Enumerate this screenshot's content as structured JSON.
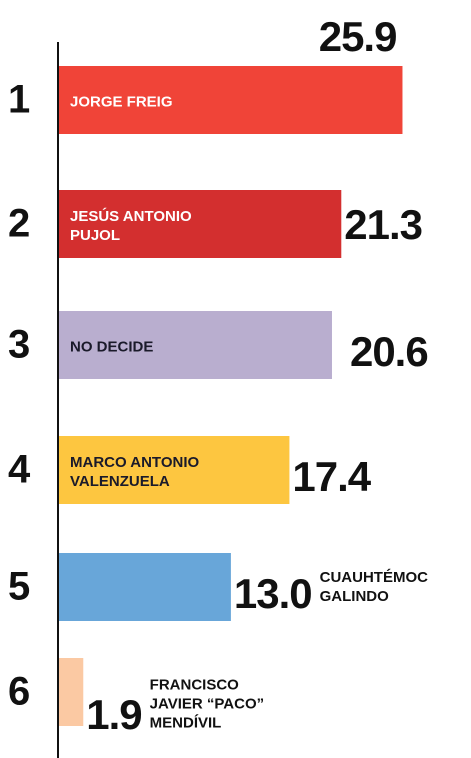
{
  "chart_data": {
    "type": "hbar",
    "ranks": [
      "1",
      "2",
      "3",
      "4",
      "5",
      "6"
    ],
    "categories": [
      "JORGE FREIG",
      "JESÚS ANTONIO PUJOL",
      "NO DECIDE",
      "MARCO ANTONIO VALENZUELA",
      "CUAUHTÉMOC GALINDO",
      "FRANCISCO JAVIER “PACO” MENDÍVIL"
    ],
    "values": [
      25.9,
      21.3,
      20.6,
      17.4,
      13.0,
      1.9
    ],
    "value_labels": [
      "25.9",
      "21.3",
      "20.6",
      "17.4",
      "13.0",
      "1.9"
    ],
    "colors": [
      "#f04438",
      "#d32f2f",
      "#b9aecf",
      "#fdc640",
      "#68a6d9",
      "#fbc9a3"
    ],
    "xlim": [
      0,
      30
    ]
  }
}
